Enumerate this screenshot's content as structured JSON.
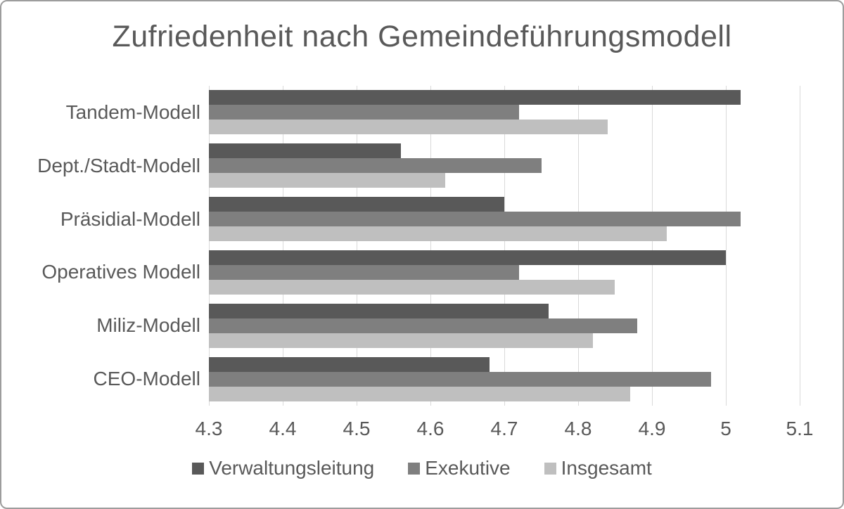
{
  "colors": {
    "text": "#595959",
    "gridline": "#d9d9d9",
    "frame_border": "#9d9d9d",
    "background": "#ffffff"
  },
  "chart_data": {
    "type": "bar",
    "orientation": "horizontal",
    "title": "Zufriedenheit nach Gemeindeführungsmodell",
    "categories": [
      "Tandem-Modell",
      "Dept./Stadt-Modell",
      "Präsidial-Modell",
      "Operatives Modell",
      "Miliz-Modell",
      "CEO-Modell"
    ],
    "series": [
      {
        "name": "Verwaltungsleitung",
        "color": "#595959",
        "values": [
          5.02,
          4.56,
          4.7,
          5.0,
          4.76,
          4.68
        ]
      },
      {
        "name": "Exekutive",
        "color": "#7f7f7f",
        "values": [
          4.72,
          4.75,
          5.02,
          4.72,
          4.88,
          4.98
        ]
      },
      {
        "name": "Insgesamt",
        "color": "#bfbfbf",
        "values": [
          4.84,
          4.62,
          4.92,
          4.85,
          4.82,
          4.87
        ]
      }
    ],
    "xlabel": "",
    "ylabel": "",
    "xlim": [
      4.3,
      5.1
    ],
    "xticks": [
      4.3,
      4.4,
      4.5,
      4.6,
      4.7,
      4.8,
      4.9,
      5,
      5.1
    ],
    "xtick_labels": [
      "4.3",
      "4.4",
      "4.5",
      "4.6",
      "4.7",
      "4.8",
      "4.9",
      "5",
      "5.1"
    ],
    "grid": true,
    "legend_position": "bottom"
  }
}
